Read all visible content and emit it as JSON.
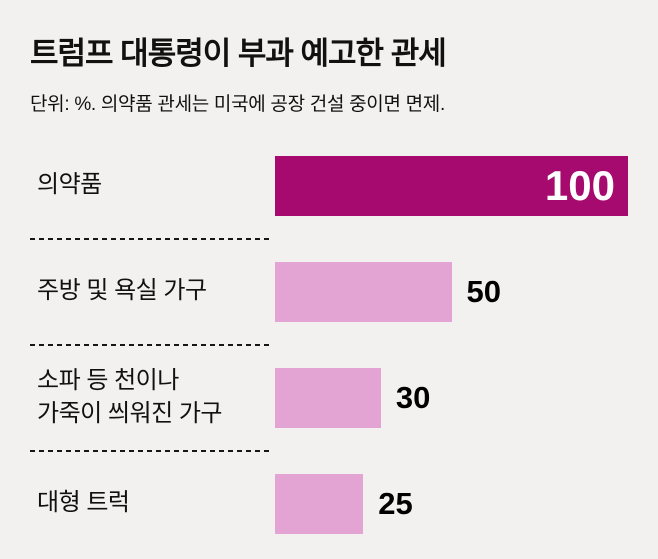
{
  "header": {
    "title": "트럼프 대통령이 부과 예고한 관세",
    "subtitle": "단위: %. 의약품 관세는 미국에 공장 건설 중이면 면제."
  },
  "chart_data": {
    "type": "bar",
    "orientation": "horizontal",
    "title": "트럼프 대통령이 부과 예고한 관세",
    "subtitle": "단위: %. 의약품 관세는 미국에 공장 건설 중이면 면제.",
    "unit": "%",
    "categories": [
      "의약품",
      "주방 및 욕실 가구",
      "소파 등 천이나 가죽이 씌워진 가구",
      "대형 트럭"
    ],
    "values": [
      100,
      50,
      30,
      25
    ],
    "xlim": [
      0,
      100
    ],
    "grid": false,
    "legend": "none",
    "colors": {
      "highlight_bar": "#a60a6e",
      "bar": "#e3a3d3",
      "value_inside": "#ffffff",
      "value_outside": "#000000",
      "background": "#f2f1ef",
      "separator": "#161616"
    },
    "rows": [
      {
        "label": "의약품",
        "value": "100",
        "numeric": 100,
        "highlight": true,
        "value_position": "inside"
      },
      {
        "label": "주방 및 욕실 가구",
        "value": "50",
        "numeric": 50,
        "highlight": false,
        "value_position": "outside"
      },
      {
        "label": "소파 등 천이나\n가죽이 씌워진 가구",
        "value": "30",
        "numeric": 30,
        "highlight": false,
        "value_position": "outside"
      },
      {
        "label": "대형 트럭",
        "value": "25",
        "numeric": 25,
        "highlight": false,
        "value_position": "outside"
      }
    ]
  }
}
